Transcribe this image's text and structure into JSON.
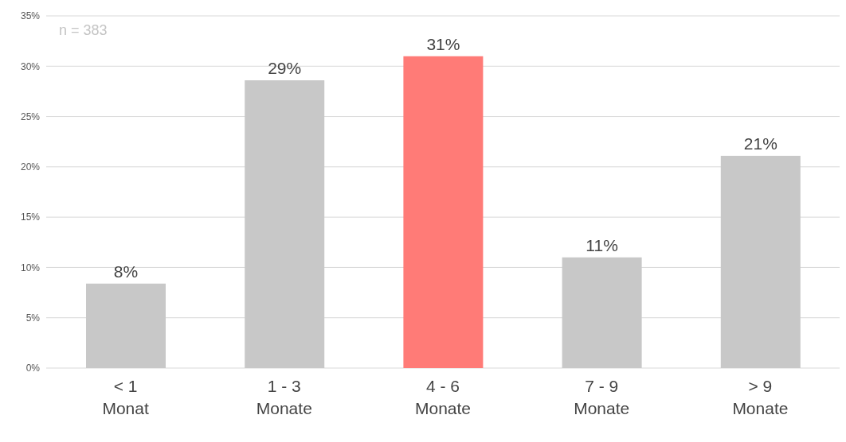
{
  "chart_data": {
    "type": "bar",
    "categories": [
      "< 1\nMonat",
      "1 - 3\nMonate",
      "4 - 6\nMonate",
      "7 - 9\nMonate",
      "> 9\nMonate"
    ],
    "values": [
      8.4,
      28.6,
      31,
      11,
      21.1
    ],
    "colors": [
      "#c8c8c8",
      "#c8c8c8",
      "#ff7b77",
      "#c8c8c8",
      "#c8c8c8"
    ],
    "value_labels": [
      "8%",
      "29%",
      "31%",
      "11%",
      "21%"
    ],
    "ylim": [
      0,
      35
    ],
    "yticks": [
      {
        "value": 0,
        "label": "0%"
      },
      {
        "value": 5,
        "label": "5%"
      },
      {
        "value": 10,
        "label": "10%"
      },
      {
        "value": 15,
        "label": "15%"
      },
      {
        "value": 20,
        "label": "20%"
      },
      {
        "value": 25,
        "label": "25%"
      },
      {
        "value": 30,
        "label": "30%"
      },
      {
        "value": 35,
        "label": "35%"
      }
    ],
    "grid": "y",
    "annotations": [
      "n = 383"
    ]
  }
}
